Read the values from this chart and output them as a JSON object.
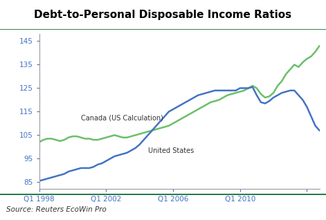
{
  "title": "Debt-to-Personal Disposable Income Ratios",
  "title_fontsize": 11,
  "title_fontweight": "bold",
  "source_text": "Source: Reuters EcoWin Pro",
  "ylabel_ticks": [
    85,
    95,
    105,
    115,
    125,
    135,
    145
  ],
  "ylim": [
    82,
    148
  ],
  "xlim": [
    0,
    67
  ],
  "xtick_positions": [
    0,
    16,
    32,
    48,
    64
  ],
  "xtick_labels": [
    "Q1 1998",
    "Q1 2002",
    "Q1 2006",
    "Q1 2010",
    ""
  ],
  "canada_label": "Canada (US Calculation)",
  "us_label": "United States",
  "canada_color": "#6abf69",
  "us_color": "#4472c4",
  "tick_color": "#4472c4",
  "line_width": 1.8,
  "background_color": "#ffffff",
  "title_bg_color": "#d9ead3",
  "title_border_color": "#1a7340",
  "separator_color": "#1a7340",
  "canada_data": [
    102.0,
    103.0,
    103.5,
    103.5,
    103.0,
    102.5,
    103.0,
    104.0,
    104.5,
    104.5,
    104.0,
    103.5,
    103.5,
    103.0,
    103.0,
    103.5,
    104.0,
    104.5,
    105.0,
    104.5,
    104.0,
    104.0,
    104.5,
    105.0,
    105.5,
    106.0,
    106.5,
    107.0,
    107.5,
    108.0,
    108.5,
    109.0,
    110.0,
    111.0,
    112.0,
    113.0,
    114.0,
    115.0,
    116.0,
    117.0,
    118.0,
    119.0,
    119.5,
    120.0,
    121.0,
    122.0,
    122.5,
    123.0,
    123.5,
    124.0,
    125.0,
    126.0,
    125.0,
    122.5,
    121.0,
    121.5,
    123.0,
    126.0,
    128.0,
    131.0,
    133.0,
    135.0,
    134.0,
    136.0,
    137.5,
    138.5,
    140.5,
    143.0
  ],
  "us_data": [
    85.5,
    86.0,
    86.5,
    87.0,
    87.5,
    88.0,
    88.5,
    89.5,
    90.0,
    90.5,
    91.0,
    91.0,
    91.0,
    91.5,
    92.5,
    93.0,
    94.0,
    95.0,
    96.0,
    96.5,
    97.0,
    97.5,
    98.5,
    99.5,
    101.0,
    103.0,
    105.0,
    107.0,
    109.0,
    111.0,
    113.0,
    115.0,
    116.0,
    117.0,
    118.0,
    119.0,
    120.0,
    121.0,
    122.0,
    122.5,
    123.0,
    123.5,
    124.0,
    124.0,
    124.0,
    124.0,
    124.0,
    124.0,
    125.0,
    125.0,
    125.0,
    125.5,
    122.0,
    119.0,
    118.5,
    119.5,
    121.0,
    122.0,
    123.0,
    123.5,
    124.0,
    124.0,
    122.0,
    120.0,
    117.0,
    113.0,
    109.0,
    107.0
  ]
}
